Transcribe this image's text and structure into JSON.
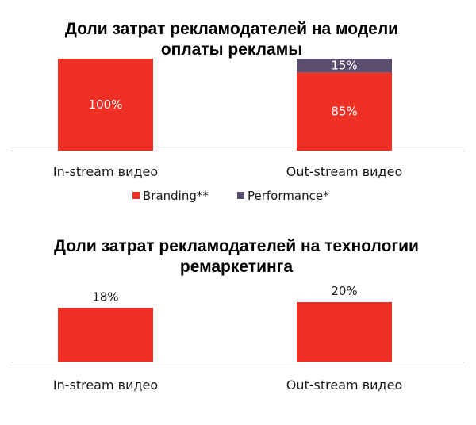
{
  "colors": {
    "branding": "#ee3124",
    "performance": "#5b4e6e",
    "axis": "#bfbfbf"
  },
  "chart_data": [
    {
      "type": "bar",
      "stacked": true,
      "title_lines": [
        "Доли затрат рекламодателей на модели",
        "оплаты рекламы"
      ],
      "categories": [
        "In-stream видео",
        "Out-stream видео"
      ],
      "series": [
        {
          "name": "Branding**",
          "values": [
            100,
            85
          ],
          "labels": [
            "100%",
            "85%"
          ]
        },
        {
          "name": "Performance*",
          "values": [
            0,
            15
          ],
          "labels": [
            "",
            "15%"
          ]
        }
      ],
      "ylim": [
        0,
        100
      ],
      "legend": "bottom",
      "grid": false
    },
    {
      "type": "bar",
      "title_lines": [
        "Доли затрат рекламодателей на технологии",
        "ремаркетинга"
      ],
      "categories": [
        "In-stream видео",
        "Out-stream видео"
      ],
      "values": [
        18,
        20
      ],
      "labels": [
        "18%",
        "20%"
      ],
      "legend": "none",
      "grid": false
    }
  ]
}
